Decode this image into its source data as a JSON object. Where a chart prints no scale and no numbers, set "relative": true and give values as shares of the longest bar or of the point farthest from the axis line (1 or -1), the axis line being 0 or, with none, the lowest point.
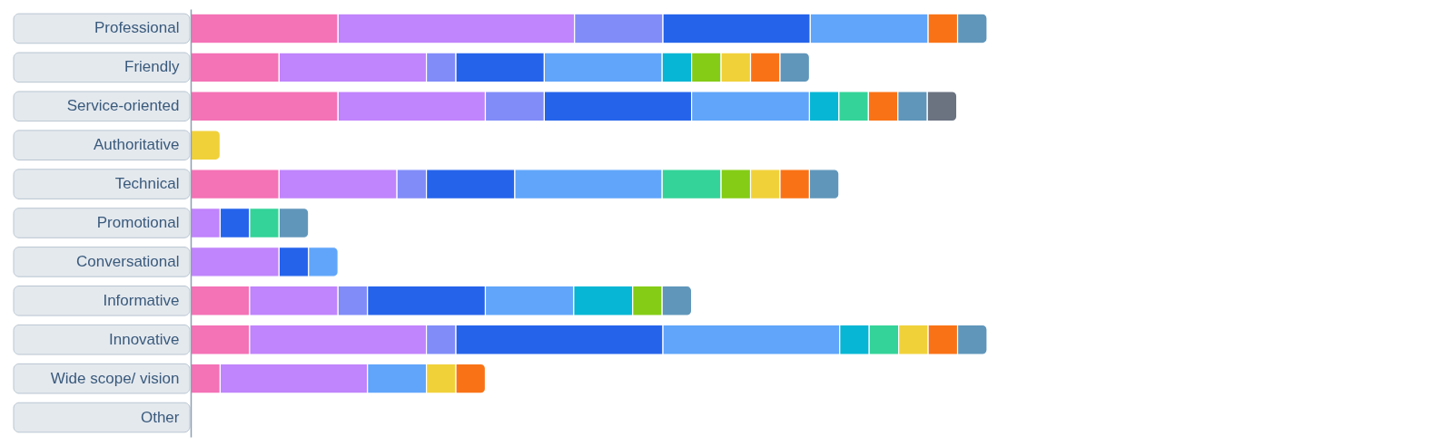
{
  "chart_data": {
    "type": "bar",
    "orientation": "horizontal",
    "stacked": true,
    "relative": true,
    "tick_labels": "y",
    "categories": [
      "Professional",
      "Friendly",
      "Service-oriented",
      "Authoritative",
      "Technical",
      "Promotional",
      "Conversational",
      "Informative",
      "Innovative",
      "Wide scope/ vision",
      "Other"
    ],
    "series": [
      {
        "color": "#f472b6",
        "values": [
          0.185,
          0.111,
          0.185,
          null,
          0.111,
          null,
          null,
          0.074,
          0.074,
          0.037,
          null
        ]
      },
      {
        "color": "#c084fc",
        "values": [
          0.297,
          0.185,
          0.185,
          null,
          0.148,
          0.037,
          0.111,
          0.111,
          0.222,
          0.185,
          null
        ]
      },
      {
        "color": "#818cf8",
        "values": [
          0.111,
          0.037,
          0.074,
          null,
          0.037,
          null,
          null,
          0.037,
          0.037,
          null,
          null
        ]
      },
      {
        "color": "#2563eb",
        "values": [
          0.185,
          0.111,
          0.185,
          null,
          0.111,
          0.037,
          0.037,
          0.148,
          0.26,
          null,
          null
        ]
      },
      {
        "color": "#60a5fa",
        "values": [
          0.148,
          0.148,
          0.148,
          null,
          0.185,
          null,
          0.037,
          0.111,
          0.222,
          0.074,
          null
        ]
      },
      {
        "color": "#06b6d4",
        "values": [
          null,
          0.037,
          0.037,
          null,
          null,
          null,
          null,
          0.074,
          0.037,
          null,
          null
        ]
      },
      {
        "color": "#34d399",
        "values": [
          null,
          null,
          0.037,
          null,
          0.074,
          0.037,
          null,
          null,
          0.037,
          null,
          null
        ]
      },
      {
        "color": "#84cc16",
        "values": [
          null,
          0.037,
          null,
          null,
          0.037,
          null,
          null,
          0.037,
          null,
          null,
          null
        ]
      },
      {
        "color": "#f0d13a",
        "values": [
          null,
          0.037,
          null,
          0.037,
          0.037,
          null,
          null,
          null,
          0.037,
          0.037,
          null
        ]
      },
      {
        "color": "#f97316",
        "values": [
          0.037,
          0.037,
          0.037,
          null,
          0.037,
          null,
          null,
          null,
          0.037,
          0.037,
          null
        ]
      },
      {
        "color": "#6096ba",
        "values": [
          0.037,
          0.037,
          0.037,
          null,
          0.037,
          0.037,
          null,
          0.037,
          0.037,
          null,
          null
        ]
      },
      {
        "color": "#6b7280",
        "values": [
          null,
          null,
          0.037,
          null,
          null,
          null,
          null,
          null,
          null,
          null,
          null
        ]
      }
    ]
  }
}
